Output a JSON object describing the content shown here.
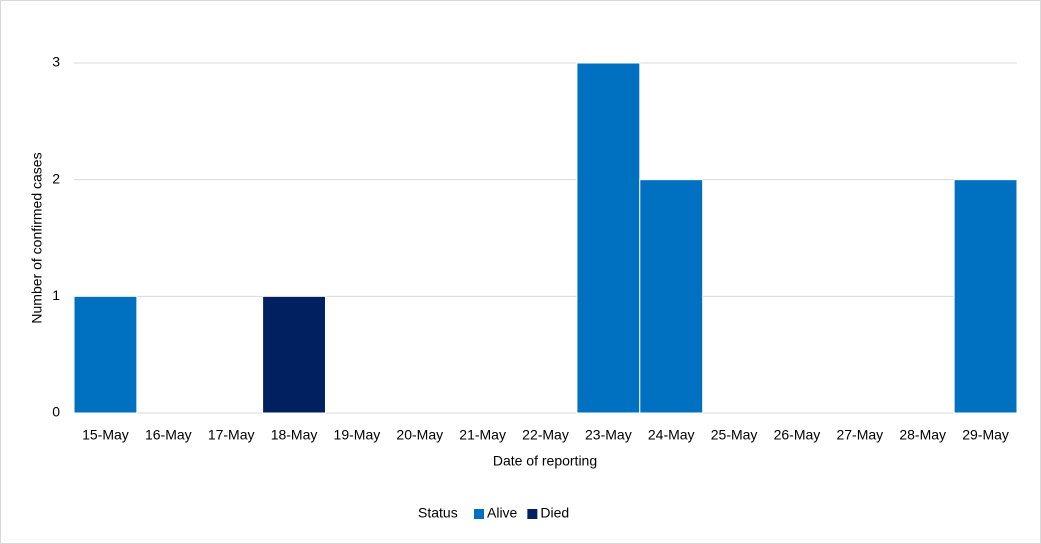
{
  "chart_data": {
    "type": "bar",
    "stacked": true,
    "x_label": "Date of reporting",
    "y_label": "Number of confirmed cases",
    "categories": [
      "15-May",
      "16-May",
      "17-May",
      "18-May",
      "19-May",
      "20-May",
      "21-May",
      "22-May",
      "23-May",
      "24-May",
      "25-May",
      "26-May",
      "27-May",
      "28-May",
      "29-May"
    ],
    "series": [
      {
        "name": "Alive",
        "color": "#0070c0",
        "values": [
          1,
          0,
          0,
          0,
          0,
          0,
          0,
          0,
          3,
          2,
          0,
          0,
          0,
          0,
          2
        ]
      },
      {
        "name": "Died",
        "color": "#002060",
        "values": [
          0,
          0,
          0,
          1,
          0,
          0,
          0,
          0,
          0,
          0,
          0,
          0,
          0,
          0,
          0
        ]
      }
    ],
    "legend_title": "Status",
    "legend": "bottom",
    "ylim": [
      0,
      3
    ],
    "yticks": [
      0,
      1,
      2,
      3
    ],
    "grid": true
  }
}
